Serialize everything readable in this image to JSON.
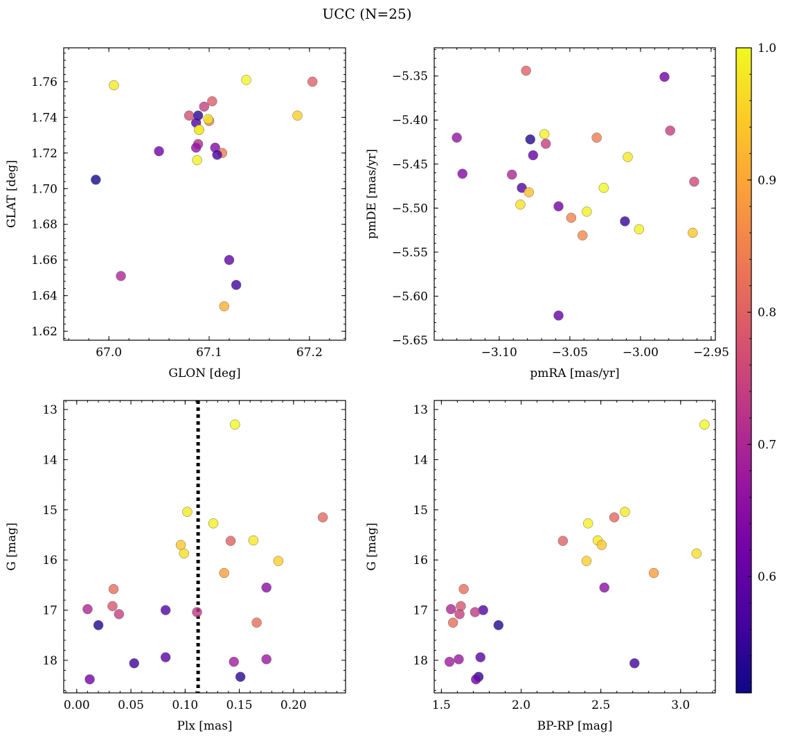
{
  "title": "UCC (N=25)",
  "colorbar": {
    "min": 0.512,
    "max": 1.0,
    "ticks": [
      0.6,
      0.7,
      0.8,
      0.9,
      1.0
    ],
    "tick_labels": [
      "0.6",
      "0.7",
      "0.8",
      "0.9",
      "1.0"
    ],
    "colormap": "plasma",
    "stops": [
      "#0d0887",
      "#46039f",
      "#7201a8",
      "#9c179e",
      "#bd3786",
      "#d8576b",
      "#ed7953",
      "#fb9f3a",
      "#fdca26",
      "#f0f921"
    ]
  },
  "style": {
    "marker_alpha": 0.8,
    "edge_color": "#666666",
    "vline_color": "#000000"
  },
  "chart_data": [
    {
      "type": "scatter",
      "xlabel": "GLON [deg]",
      "ylabel": "GLAT [deg]",
      "xlim": [
        66.955,
        67.236
      ],
      "ylim": [
        1.615,
        1.779
      ],
      "xticks": [
        67.0,
        67.1,
        67.2
      ],
      "xtick_labels": [
        "67.0",
        "67.1",
        "67.2"
      ],
      "yticks": [
        1.62,
        1.64,
        1.66,
        1.68,
        1.7,
        1.72,
        1.74,
        1.76
      ],
      "ytick_labels": [
        "1.62",
        "1.64",
        "1.66",
        "1.68",
        "1.70",
        "1.72",
        "1.74",
        "1.76"
      ],
      "y_inverted": false,
      "points": [
        {
          "x": 67.005,
          "y": 1.758,
          "c": 0.98
        },
        {
          "x": 67.137,
          "y": 1.761,
          "c": 1.0
        },
        {
          "x": 67.203,
          "y": 1.76,
          "c": 0.8
        },
        {
          "x": 67.188,
          "y": 1.741,
          "c": 0.95
        },
        {
          "x": 66.987,
          "y": 1.705,
          "c": 0.52
        },
        {
          "x": 67.012,
          "y": 1.651,
          "c": 0.7
        },
        {
          "x": 67.05,
          "y": 1.721,
          "c": 0.62
        },
        {
          "x": 67.08,
          "y": 1.741,
          "c": 0.77
        },
        {
          "x": 67.089,
          "y": 1.741,
          "c": 0.54
        },
        {
          "x": 67.103,
          "y": 1.749,
          "c": 0.79
        },
        {
          "x": 67.095,
          "y": 1.746,
          "c": 0.74
        },
        {
          "x": 67.087,
          "y": 1.737,
          "c": 0.58
        },
        {
          "x": 67.1,
          "y": 1.738,
          "c": 0.84
        },
        {
          "x": 67.099,
          "y": 1.739,
          "c": 0.98
        },
        {
          "x": 67.09,
          "y": 1.733,
          "c": 0.99
        },
        {
          "x": 67.089,
          "y": 1.725,
          "c": 0.71
        },
        {
          "x": 67.087,
          "y": 1.723,
          "c": 0.66
        },
        {
          "x": 67.106,
          "y": 1.723,
          "c": 0.64
        },
        {
          "x": 67.113,
          "y": 1.72,
          "c": 0.84
        },
        {
          "x": 67.108,
          "y": 1.719,
          "c": 0.57
        },
        {
          "x": 67.088,
          "y": 1.716,
          "c": 0.99
        },
        {
          "x": 67.12,
          "y": 1.66,
          "c": 0.6
        },
        {
          "x": 67.127,
          "y": 1.646,
          "c": 0.56
        },
        {
          "x": 67.115,
          "y": 1.634,
          "c": 0.91
        },
        {
          "x": 67.09,
          "y": 1.733,
          "c": 0.98
        }
      ]
    },
    {
      "type": "scatter",
      "xlabel": "pmRA [mas/yr]",
      "ylabel": "pmDE [mas/yr]",
      "xlim": [
        -3.146,
        -2.947
      ],
      "ylim": [
        -5.65,
        -5.318
      ],
      "xticks": [
        -3.1,
        -3.05,
        -3.0,
        -2.95
      ],
      "xtick_labels": [
        "−3.10",
        "−3.05",
        "−3.00",
        "−2.95"
      ],
      "yticks": [
        -5.65,
        -5.6,
        -5.55,
        -5.5,
        -5.45,
        -5.4,
        -5.35
      ],
      "ytick_labels": [
        "−5.65",
        "−5.60",
        "−5.55",
        "−5.50",
        "−5.45",
        "−5.40",
        "−5.35"
      ],
      "y_inverted": false,
      "points": [
        {
          "x": -3.081,
          "y": -5.344,
          "c": 0.8
        },
        {
          "x": -2.983,
          "y": -5.351,
          "c": 0.62
        },
        {
          "x": -2.979,
          "y": -5.412,
          "c": 0.74
        },
        {
          "x": -3.13,
          "y": -5.42,
          "c": 0.66
        },
        {
          "x": -3.068,
          "y": -5.416,
          "c": 0.99
        },
        {
          "x": -3.078,
          "y": -5.422,
          "c": 0.53
        },
        {
          "x": -3.067,
          "y": -5.427,
          "c": 0.74
        },
        {
          "x": -3.031,
          "y": -5.42,
          "c": 0.84
        },
        {
          "x": -3.076,
          "y": -5.44,
          "c": 0.6
        },
        {
          "x": -3.009,
          "y": -5.442,
          "c": 0.98
        },
        {
          "x": -3.126,
          "y": -5.461,
          "c": 0.64
        },
        {
          "x": -3.091,
          "y": -5.462,
          "c": 0.7
        },
        {
          "x": -2.962,
          "y": -5.47,
          "c": 0.76
        },
        {
          "x": -3.084,
          "y": -5.477,
          "c": 0.58
        },
        {
          "x": -3.026,
          "y": -5.477,
          "c": 1.0
        },
        {
          "x": -3.079,
          "y": -5.482,
          "c": 0.93
        },
        {
          "x": -3.085,
          "y": -5.496,
          "c": 0.97
        },
        {
          "x": -3.058,
          "y": -5.498,
          "c": 0.62
        },
        {
          "x": -3.038,
          "y": -5.504,
          "c": 0.99
        },
        {
          "x": -3.049,
          "y": -5.511,
          "c": 0.85
        },
        {
          "x": -3.011,
          "y": -5.515,
          "c": 0.55
        },
        {
          "x": -3.001,
          "y": -5.524,
          "c": 0.99
        },
        {
          "x": -2.963,
          "y": -5.528,
          "c": 0.94
        },
        {
          "x": -3.041,
          "y": -5.531,
          "c": 0.86
        },
        {
          "x": -3.058,
          "y": -5.622,
          "c": 0.6
        }
      ]
    },
    {
      "type": "scatter",
      "xlabel": "Plx [mas]",
      "ylabel": "G [mag]",
      "xlim": [
        -0.012,
        0.248
      ],
      "ylim": [
        18.65,
        12.82
      ],
      "xticks": [
        0.0,
        0.05,
        0.1,
        0.15,
        0.2
      ],
      "xtick_labels": [
        "0.00",
        "0.05",
        "0.10",
        "0.15",
        "0.20"
      ],
      "yticks": [
        13,
        14,
        15,
        16,
        17,
        18
      ],
      "ytick_labels": [
        "13",
        "14",
        "15",
        "16",
        "17",
        "18"
      ],
      "y_inverted": true,
      "vline": 0.112,
      "points": [
        {
          "x": 0.146,
          "y": 13.3,
          "c": 1.0
        },
        {
          "x": 0.102,
          "y": 15.04,
          "c": 0.98
        },
        {
          "x": 0.227,
          "y": 15.15,
          "c": 0.81
        },
        {
          "x": 0.126,
          "y": 15.27,
          "c": 0.99
        },
        {
          "x": 0.142,
          "y": 15.62,
          "c": 0.8
        },
        {
          "x": 0.163,
          "y": 15.61,
          "c": 0.98
        },
        {
          "x": 0.096,
          "y": 15.7,
          "c": 0.94
        },
        {
          "x": 0.099,
          "y": 15.87,
          "c": 0.97
        },
        {
          "x": 0.186,
          "y": 16.02,
          "c": 0.95
        },
        {
          "x": 0.136,
          "y": 16.26,
          "c": 0.89
        },
        {
          "x": 0.175,
          "y": 16.55,
          "c": 0.65
        },
        {
          "x": 0.034,
          "y": 16.58,
          "c": 0.82
        },
        {
          "x": 0.033,
          "y": 16.92,
          "c": 0.78
        },
        {
          "x": 0.01,
          "y": 16.98,
          "c": 0.7
        },
        {
          "x": 0.082,
          "y": 17.0,
          "c": 0.58
        },
        {
          "x": 0.111,
          "y": 17.04,
          "c": 0.73
        },
        {
          "x": 0.039,
          "y": 17.08,
          "c": 0.74
        },
        {
          "x": 0.166,
          "y": 17.25,
          "c": 0.82
        },
        {
          "x": 0.02,
          "y": 17.3,
          "c": 0.53
        },
        {
          "x": 0.082,
          "y": 17.94,
          "c": 0.59
        },
        {
          "x": 0.175,
          "y": 17.98,
          "c": 0.67
        },
        {
          "x": 0.145,
          "y": 18.03,
          "c": 0.68
        },
        {
          "x": 0.053,
          "y": 18.06,
          "c": 0.56
        },
        {
          "x": 0.151,
          "y": 18.33,
          "c": 0.54
        },
        {
          "x": 0.012,
          "y": 18.38,
          "c": 0.62
        }
      ]
    },
    {
      "type": "scatter",
      "xlabel": "BP-RP [mag]",
      "ylabel": "G [mag]",
      "xlim": [
        1.455,
        3.218
      ],
      "ylim": [
        18.65,
        12.82
      ],
      "xticks": [
        1.5,
        2.0,
        2.5,
        3.0
      ],
      "xtick_labels": [
        "1.5",
        "2.0",
        "2.5",
        "3.0"
      ],
      "yticks": [
        13,
        14,
        15,
        16,
        17,
        18
      ],
      "ytick_labels": [
        "13",
        "14",
        "15",
        "16",
        "17",
        "18"
      ],
      "y_inverted": true,
      "points": [
        {
          "x": 3.15,
          "y": 13.3,
          "c": 1.0
        },
        {
          "x": 2.651,
          "y": 15.04,
          "c": 0.98
        },
        {
          "x": 2.584,
          "y": 15.15,
          "c": 0.81
        },
        {
          "x": 2.42,
          "y": 15.27,
          "c": 0.99
        },
        {
          "x": 2.262,
          "y": 15.62,
          "c": 0.8
        },
        {
          "x": 2.48,
          "y": 15.61,
          "c": 0.98
        },
        {
          "x": 2.505,
          "y": 15.7,
          "c": 0.94
        },
        {
          "x": 3.1,
          "y": 15.87,
          "c": 0.97
        },
        {
          "x": 2.41,
          "y": 16.02,
          "c": 0.95
        },
        {
          "x": 2.832,
          "y": 16.26,
          "c": 0.89
        },
        {
          "x": 2.522,
          "y": 16.55,
          "c": 0.65
        },
        {
          "x": 1.64,
          "y": 16.58,
          "c": 0.82
        },
        {
          "x": 1.622,
          "y": 16.92,
          "c": 0.78
        },
        {
          "x": 1.56,
          "y": 16.98,
          "c": 0.7
        },
        {
          "x": 1.762,
          "y": 17.0,
          "c": 0.58
        },
        {
          "x": 1.711,
          "y": 17.04,
          "c": 0.73
        },
        {
          "x": 1.614,
          "y": 17.08,
          "c": 0.74
        },
        {
          "x": 1.573,
          "y": 17.25,
          "c": 0.82
        },
        {
          "x": 1.858,
          "y": 17.3,
          "c": 0.53
        },
        {
          "x": 1.745,
          "y": 17.94,
          "c": 0.59
        },
        {
          "x": 1.609,
          "y": 17.98,
          "c": 0.67
        },
        {
          "x": 1.551,
          "y": 18.03,
          "c": 0.68
        },
        {
          "x": 2.711,
          "y": 18.06,
          "c": 0.56
        },
        {
          "x": 1.733,
          "y": 18.33,
          "c": 0.54
        },
        {
          "x": 1.717,
          "y": 18.38,
          "c": 0.62
        }
      ]
    }
  ]
}
